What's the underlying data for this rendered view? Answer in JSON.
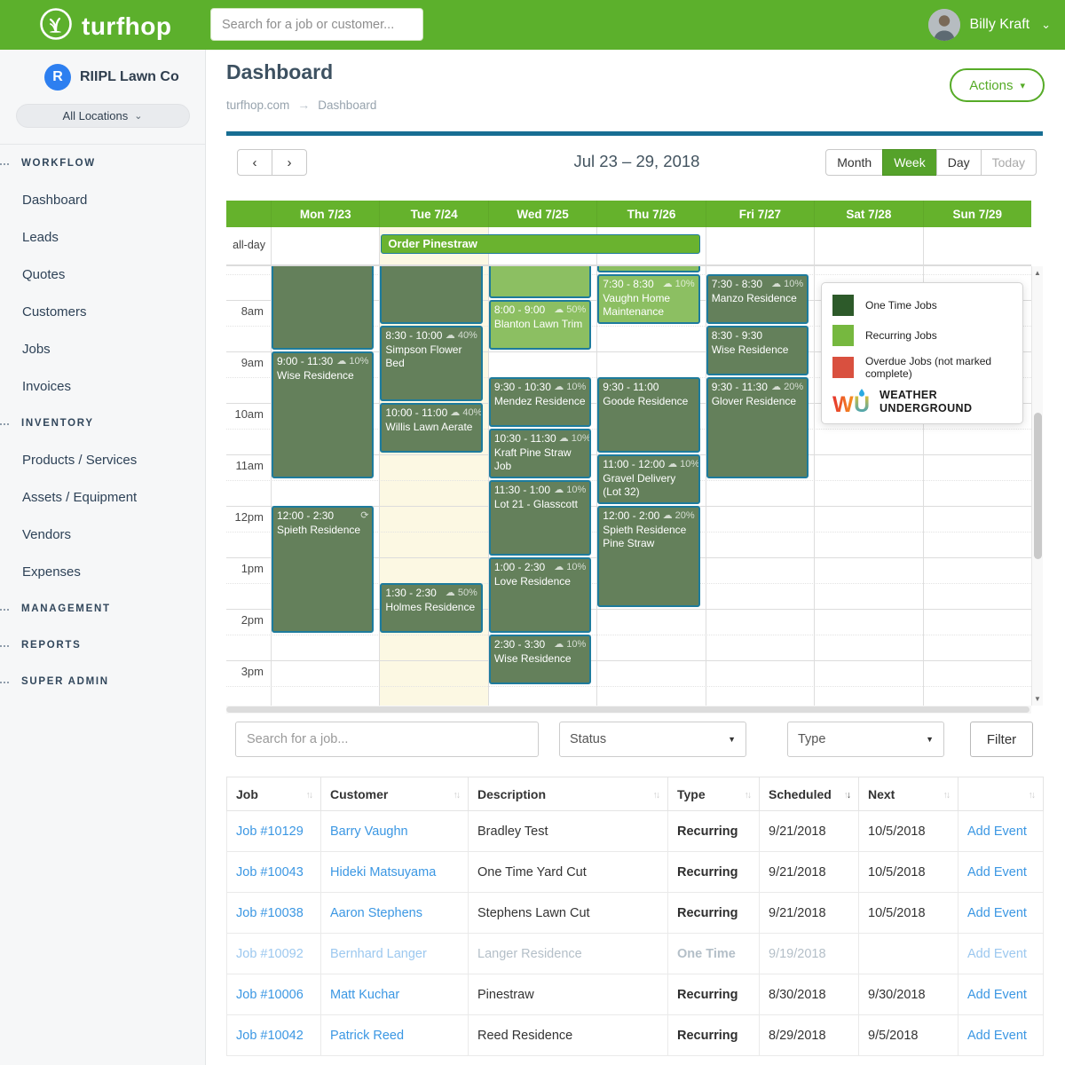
{
  "header": {
    "brand": "turfhop",
    "search_placeholder": "Search for a job or customer...",
    "user": "Billy Kraft"
  },
  "icons": {
    "prev": "‹",
    "next": "›",
    "caret_down": "▾",
    "select_caret": "▼",
    "chevron_down": "⌄",
    "cloud": "☁",
    "sync": "⟳",
    "sort_up": "↑",
    "sort_down": "↓",
    "scroll_up": "▲",
    "scroll_down": "▼",
    "breadcrumb_arrow": "→"
  },
  "sidebar": {
    "company": "RIIPL Lawn Co",
    "company_initial": "R",
    "locations": "All Locations",
    "sections": [
      {
        "label": "WORKFLOW",
        "items": [
          "Dashboard",
          "Leads",
          "Quotes",
          "Customers",
          "Jobs",
          "Invoices"
        ]
      },
      {
        "label": "INVENTORY",
        "items": [
          "Products / Services",
          "Assets / Equipment",
          "Vendors",
          "Expenses"
        ]
      },
      {
        "label": "MANAGEMENT",
        "items": []
      },
      {
        "label": "REPORTS",
        "items": []
      },
      {
        "label": "SUPER ADMIN",
        "items": []
      }
    ]
  },
  "page": {
    "title": "Dashboard",
    "breadcrumb": [
      "turfhop.com",
      "Dashboard"
    ],
    "actions_label": "Actions"
  },
  "calendar": {
    "title": "Jul 23 – 29, 2018",
    "views": [
      {
        "label": "Month",
        "state": "normal"
      },
      {
        "label": "Week",
        "state": "active"
      },
      {
        "label": "Day",
        "state": "normal"
      },
      {
        "label": "Today",
        "state": "disabled"
      }
    ],
    "days": [
      "Mon 7/23",
      "Tue 7/24",
      "Wed 7/25",
      "Thu 7/26",
      "Fri 7/27",
      "Sat 7/28",
      "Sun 7/29"
    ],
    "today_index": 1,
    "allday_label": "all-day",
    "allday_event": {
      "title": "Order Pinestraw",
      "start_col": 1,
      "span": 3
    },
    "times": [
      "8am",
      "9am",
      "10am",
      "11am",
      "12pm",
      "1pm",
      "2pm",
      "3pm"
    ],
    "events": [
      {
        "day": 0,
        "start": 7,
        "end": 9,
        "kind": "one_time"
      },
      {
        "day": 0,
        "start": 9,
        "end": 11.5,
        "kind": "one_time",
        "time": "9:00 - 11:30",
        "title": "Wise Residence",
        "weather": "10%"
      },
      {
        "day": 0,
        "start": 12,
        "end": 14.5,
        "kind": "one_time",
        "time": "12:00 - 2:30",
        "title": "Spieth Residence",
        "icon": "sync"
      },
      {
        "day": 1,
        "start": 7,
        "end": 8.5,
        "kind": "one_time"
      },
      {
        "day": 1,
        "start": 8.5,
        "end": 10,
        "kind": "one_time",
        "time": "8:30 - 10:00",
        "title": "Simpson Flower Bed",
        "weather": "40%"
      },
      {
        "day": 1,
        "start": 10,
        "end": 11,
        "kind": "one_time",
        "time": "10:00 - 11:00",
        "title": "Willis Lawn Aerate",
        "weather": "40%"
      },
      {
        "day": 1,
        "start": 13.5,
        "end": 14.5,
        "kind": "one_time",
        "time": "1:30 - 2:30",
        "title": "Holmes Residence",
        "weather": "50%"
      },
      {
        "day": 2,
        "start": 7,
        "end": 8,
        "kind": "recurring"
      },
      {
        "day": 2,
        "start": 8,
        "end": 9,
        "kind": "recurring",
        "time": "8:00 - 9:00",
        "title": "Blanton Lawn Trim",
        "weather": "50%"
      },
      {
        "day": 2,
        "start": 9.5,
        "end": 10.5,
        "kind": "one_time",
        "time": "9:30 - 10:30",
        "title": "Mendez Residence",
        "weather": "10%"
      },
      {
        "day": 2,
        "start": 10.5,
        "end": 11.5,
        "kind": "one_time",
        "time": "10:30 - 11:30",
        "title": "Kraft Pine Straw Job",
        "weather": "10%"
      },
      {
        "day": 2,
        "start": 11.5,
        "end": 13,
        "kind": "one_time",
        "time": "11:30 - 1:00",
        "title": "Lot 21 - Glasscott",
        "weather": "10%"
      },
      {
        "day": 2,
        "start": 13,
        "end": 14.5,
        "kind": "one_time",
        "time": "1:00 - 2:30",
        "title": "Love Residence",
        "weather": "10%"
      },
      {
        "day": 2,
        "start": 14.5,
        "end": 15.5,
        "kind": "one_time",
        "time": "2:30 - 3:30",
        "title": "Wise Residence",
        "weather": "10%"
      },
      {
        "day": 3,
        "start": 7,
        "end": 7.5,
        "kind": "recurring"
      },
      {
        "day": 3,
        "start": 7.5,
        "end": 8.5,
        "kind": "recurring",
        "time": "7:30 - 8:30",
        "title": "Vaughn Home Maintenance",
        "weather": "10%"
      },
      {
        "day": 3,
        "start": 9.5,
        "end": 11,
        "kind": "one_time",
        "time": "9:30 - 11:00",
        "title": "Goode Residence"
      },
      {
        "day": 3,
        "start": 11,
        "end": 12,
        "kind": "one_time",
        "time": "11:00 - 12:00",
        "title": "Gravel Delivery (Lot 32)",
        "weather": "10%"
      },
      {
        "day": 3,
        "start": 12,
        "end": 14,
        "kind": "one_time",
        "time": "12:00 - 2:00",
        "title": "Spieth Residence Pine Straw",
        "weather": "20%"
      },
      {
        "day": 4,
        "start": 7.5,
        "end": 8.5,
        "kind": "one_time",
        "time": "7:30 - 8:30",
        "title": "Manzo Residence",
        "weather": "10%"
      },
      {
        "day": 4,
        "start": 8.5,
        "end": 9.5,
        "kind": "one_time",
        "time": "8:30 - 9:30",
        "title": "Wise Residence"
      },
      {
        "day": 4,
        "start": 9.5,
        "end": 11.5,
        "kind": "one_time",
        "time": "9:30 - 11:30",
        "title": "Glover Residence",
        "weather": "20%"
      }
    ]
  },
  "legend": {
    "items": [
      {
        "label": "One Time Jobs",
        "color": "#2d5a2a"
      },
      {
        "label": "Recurring Jobs",
        "color": "#76b83f"
      },
      {
        "label": "Overdue Jobs (not marked complete)",
        "color": "#d9503f"
      }
    ],
    "weather_brand": [
      "WEATHER",
      "UNDERGROUND"
    ]
  },
  "filters": {
    "search_placeholder": "Search for a job...",
    "selects": [
      "Status",
      "Type"
    ],
    "button_label": "Filter"
  },
  "table": {
    "columns": [
      {
        "label": "Job"
      },
      {
        "label": "Customer"
      },
      {
        "label": "Description"
      },
      {
        "label": "Type"
      },
      {
        "label": "Scheduled",
        "sorted": "desc"
      },
      {
        "label": "Next"
      },
      {
        "label": ""
      }
    ],
    "rows": [
      {
        "job": "Job #10129",
        "customer": "Barry Vaughn",
        "description": "Bradley Test",
        "type": "Recurring",
        "scheduled": "9/21/2018",
        "next": "10/5/2018",
        "action": "Add Event",
        "muted": false
      },
      {
        "job": "Job #10043",
        "customer": "Hideki Matsuyama",
        "description": "One Time Yard Cut",
        "type": "Recurring",
        "scheduled": "9/21/2018",
        "next": "10/5/2018",
        "action": "Add Event",
        "muted": false
      },
      {
        "job": "Job #10038",
        "customer": "Aaron Stephens",
        "description": "Stephens Lawn Cut",
        "type": "Recurring",
        "scheduled": "9/21/2018",
        "next": "10/5/2018",
        "action": "Add Event",
        "muted": false
      },
      {
        "job": "Job #10092",
        "customer": "Bernhard Langer",
        "description": "Langer Residence",
        "type": "One Time",
        "scheduled": "9/19/2018",
        "next": "",
        "action": "Add Event",
        "muted": true
      },
      {
        "job": "Job #10006",
        "customer": "Matt Kuchar",
        "description": "Pinestraw",
        "type": "Recurring",
        "scheduled": "8/30/2018",
        "next": "9/30/2018",
        "action": "Add Event",
        "muted": false
      },
      {
        "job": "Job #10042",
        "customer": "Patrick Reed",
        "description": "Reed Residence",
        "type": "Recurring",
        "scheduled": "8/29/2018",
        "next": "9/5/2018",
        "action": "Add Event",
        "muted": false
      }
    ]
  },
  "colors": {
    "topbar_green": "#5cb02c",
    "day_header_green": "#65b22c",
    "active_view_green": "#55a22a",
    "teal_accent": "#176e93",
    "event_border": "#1d7b9c",
    "one_time_fill": "#64805b",
    "recurring_fill": "#8cbf62",
    "allday_fill": "#6ab32f",
    "overdue_red": "#d9503f",
    "today_bg": "#fcf8e3",
    "link_blue": "#3b97e3"
  }
}
